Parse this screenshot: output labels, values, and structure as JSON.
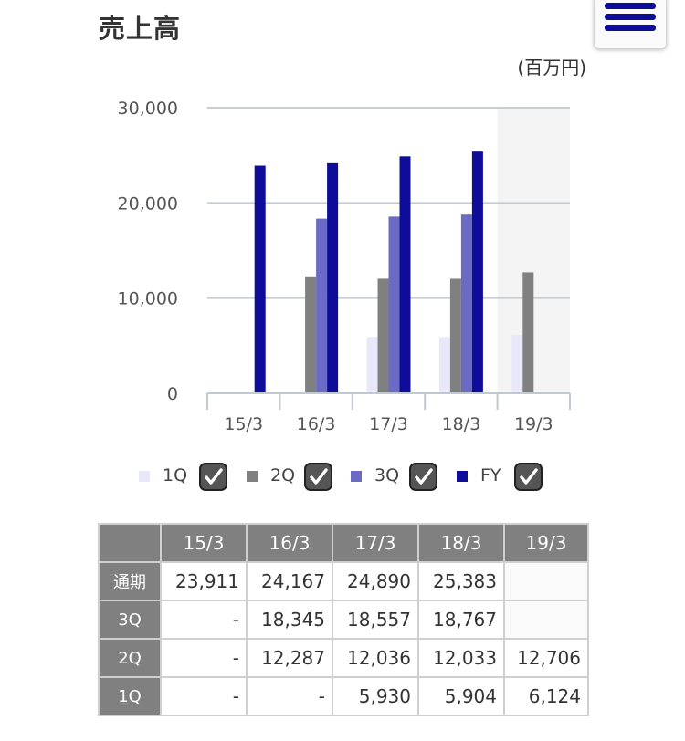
{
  "page": {
    "title": "売上高",
    "unit": "(百万円)"
  },
  "menu": {
    "icon": "hamburger-menu-icon",
    "color": "#0d0d9a"
  },
  "chart_data": {
    "type": "bar",
    "categories": [
      "15/3",
      "16/3",
      "17/3",
      "18/3",
      "19/3"
    ],
    "series": [
      {
        "name": "1Q",
        "color": "#e8e8fa",
        "values": [
          null,
          null,
          5930,
          5904,
          6124
        ]
      },
      {
        "name": "2Q",
        "color": "#808080",
        "values": [
          null,
          12287,
          12036,
          12033,
          12706
        ]
      },
      {
        "name": "3Q",
        "color": "#6b6bc6",
        "values": [
          null,
          18345,
          18557,
          18767,
          null
        ]
      },
      {
        "name": "FY",
        "color": "#0d0d9a",
        "values": [
          23911,
          24167,
          24890,
          25383,
          null
        ]
      }
    ],
    "yticks": [
      "0",
      "10,000",
      "20,000",
      "30,000"
    ],
    "ylim": [
      0,
      30000
    ],
    "grid": true,
    "highlight_category": "19/3",
    "highlight_color": "#f4f4f4",
    "legend_position": "bottom"
  },
  "table": {
    "columns": [
      "15/3",
      "16/3",
      "17/3",
      "18/3",
      "19/3"
    ],
    "rows": [
      {
        "label": "通期",
        "cells": [
          "23,911",
          "24,167",
          "24,890",
          "25,383",
          ""
        ]
      },
      {
        "label": "3Q",
        "cells": [
          "-",
          "18,345",
          "18,557",
          "18,767",
          ""
        ]
      },
      {
        "label": "2Q",
        "cells": [
          "-",
          "12,287",
          "12,036",
          "12,033",
          "12,706"
        ]
      },
      {
        "label": "1Q",
        "cells": [
          "-",
          "-",
          "5,930",
          "5,904",
          "6,124"
        ]
      }
    ]
  }
}
